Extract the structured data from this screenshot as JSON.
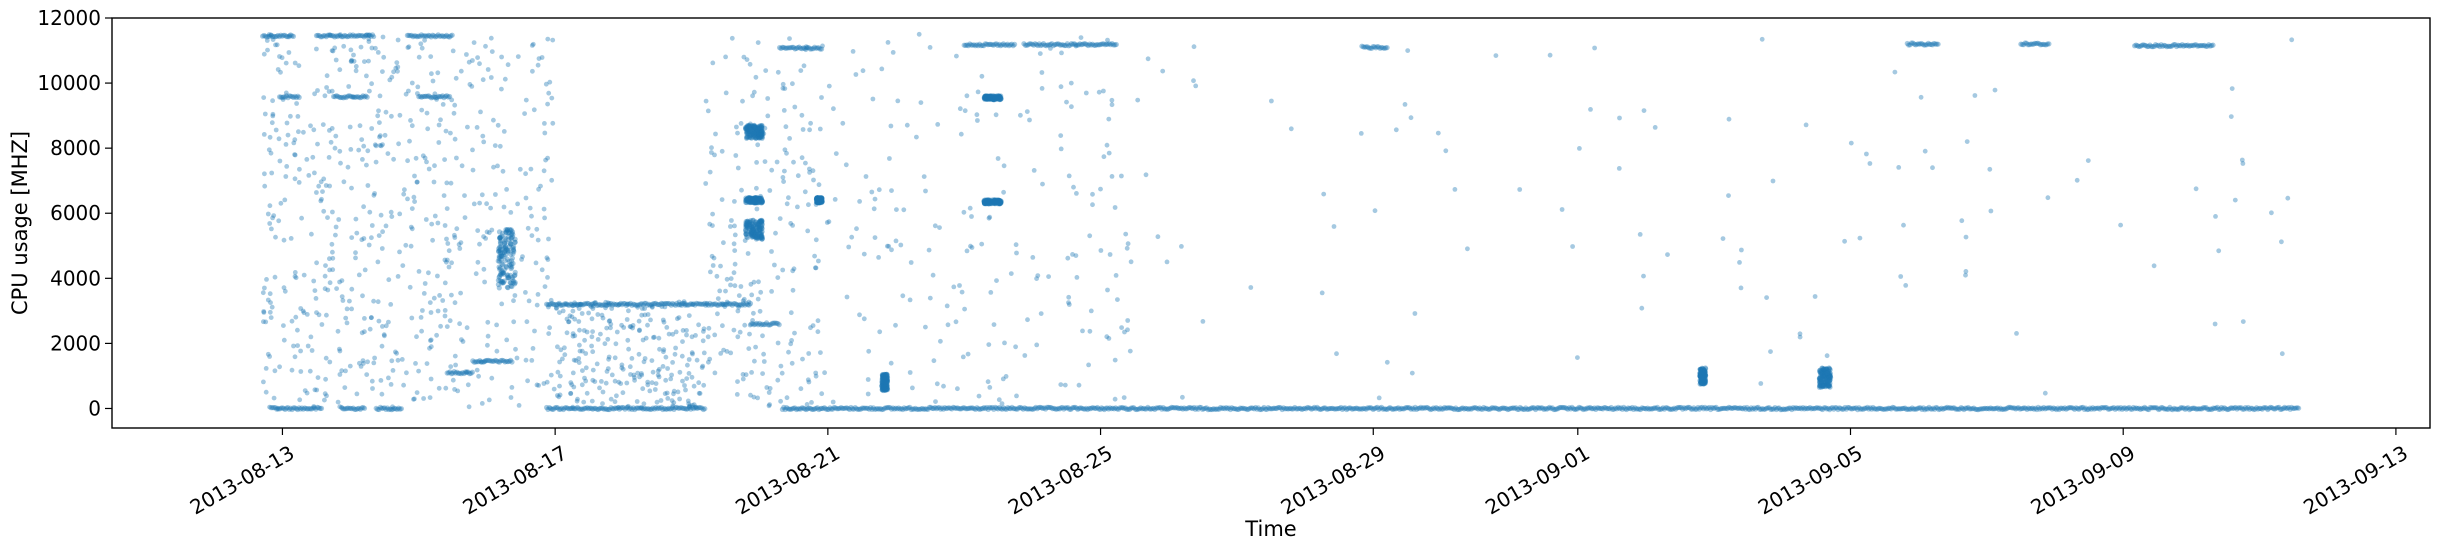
{
  "chart_data": {
    "type": "scatter",
    "title": "",
    "xlabel": "Time",
    "ylabel": "CPU usage [MHZ]",
    "x_type": "date",
    "xlim": [
      "2013-08-10T12:00",
      "2013-09-13T12:00"
    ],
    "ylim": [
      -600,
      12000
    ],
    "x_ticks": [
      "2013-08-13",
      "2013-08-17",
      "2013-08-21",
      "2013-08-25",
      "2013-08-29",
      "2013-09-01",
      "2013-09-05",
      "2013-09-09",
      "2013-09-13"
    ],
    "y_ticks": [
      0,
      2000,
      4000,
      6000,
      8000,
      10000,
      12000
    ],
    "grid": false,
    "legend": "none",
    "marker_color": "#1f77b4",
    "marker_alpha": 0.4,
    "bands": [
      {
        "start": "2013-08-12T17:00",
        "end": "2013-08-13T04:00",
        "value": 11450
      },
      {
        "start": "2013-08-13T12:00",
        "end": "2013-08-14T08:00",
        "value": 11450
      },
      {
        "start": "2013-08-14T20:00",
        "end": "2013-08-15T12:00",
        "value": 11450
      },
      {
        "start": "2013-08-12T23:00",
        "end": "2013-08-13T06:00",
        "value": 9580
      },
      {
        "start": "2013-08-13T18:00",
        "end": "2013-08-14T06:00",
        "value": 9580
      },
      {
        "start": "2013-08-15T00:00",
        "end": "2013-08-15T11:00",
        "value": 9580
      },
      {
        "start": "2013-08-12T20:00",
        "end": "2013-08-13T14:00",
        "value": 0
      },
      {
        "start": "2013-08-13T21:00",
        "end": "2013-08-14T05:00",
        "value": 0
      },
      {
        "start": "2013-08-14T09:00",
        "end": "2013-08-14T18:00",
        "value": 0
      },
      {
        "start": "2013-08-15T10:00",
        "end": "2013-08-15T19:00",
        "value": 1100
      },
      {
        "start": "2013-08-15T19:00",
        "end": "2013-08-16T09:00",
        "value": 1450
      },
      {
        "start": "2013-08-16T21:00",
        "end": "2013-08-19T05:00",
        "value": 3200
      },
      {
        "start": "2013-08-16T21:00",
        "end": "2013-08-19T05:00",
        "value": 0
      },
      {
        "start": "2013-08-19T05:00",
        "end": "2013-08-19T21:00",
        "value": 3200
      },
      {
        "start": "2013-08-19T21:00",
        "end": "2013-08-20T07:00",
        "value": 2600
      },
      {
        "start": "2013-08-20T07:00",
        "end": "2013-08-20T22:00",
        "value": 11080
      },
      {
        "start": "2013-08-20T08:00",
        "end": "2013-09-11T14:00",
        "value": 0
      },
      {
        "start": "2013-08-23T00:00",
        "end": "2013-08-23T18:00",
        "value": 11180
      },
      {
        "start": "2013-08-23T21:00",
        "end": "2013-08-25T06:00",
        "value": 11180
      },
      {
        "start": "2013-08-28T20:00",
        "end": "2013-08-29T05:00",
        "value": 11100
      },
      {
        "start": "2013-09-05T20:00",
        "end": "2013-09-06T07:00",
        "value": 11200
      },
      {
        "start": "2013-09-07T12:00",
        "end": "2013-09-07T22:00",
        "value": 11200
      },
      {
        "start": "2013-09-09T04:00",
        "end": "2013-09-10T08:00",
        "value": 11150
      }
    ],
    "clusters": [
      {
        "center": "2013-08-16T07:00",
        "spread_hours": 3,
        "value": 4600,
        "spread_value": 900
      },
      {
        "center": "2013-08-19T22:00",
        "spread_hours": 3,
        "value": 8500,
        "spread_value": 200
      },
      {
        "center": "2013-08-19T22:00",
        "spread_hours": 3,
        "value": 5500,
        "spread_value": 300
      },
      {
        "center": "2013-08-19T22:00",
        "spread_hours": 3,
        "value": 6400,
        "spread_value": 80
      },
      {
        "center": "2013-08-20T21:00",
        "spread_hours": 1,
        "value": 6400,
        "spread_value": 80
      },
      {
        "center": "2013-08-21T20:00",
        "spread_hours": 1,
        "value": 800,
        "spread_value": 250
      },
      {
        "center": "2013-08-23T10:00",
        "spread_hours": 3,
        "value": 9550,
        "spread_value": 60
      },
      {
        "center": "2013-08-23T10:00",
        "spread_hours": 3,
        "value": 6350,
        "spread_value": 60
      },
      {
        "center": "2013-09-02T20:00",
        "spread_hours": 1,
        "value": 1000,
        "spread_value": 250
      },
      {
        "center": "2013-09-04T15:00",
        "spread_hours": 2,
        "value": 950,
        "spread_value": 300
      }
    ]
  }
}
